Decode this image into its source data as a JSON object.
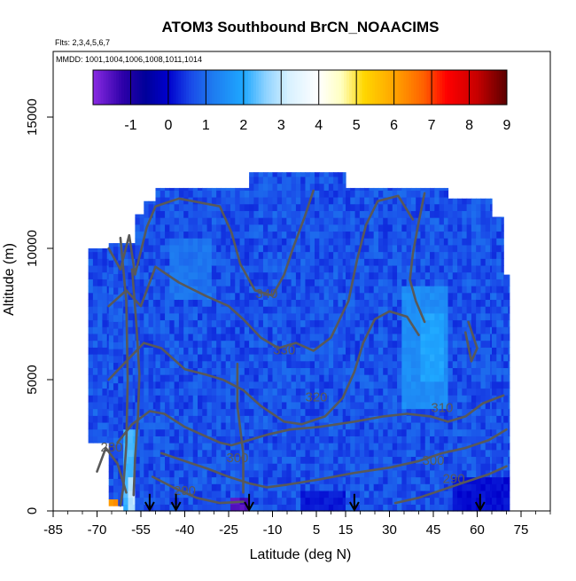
{
  "chart_data": {
    "type": "heatmap",
    "title": "ATOM3 Southbound BrCN_NOAACIMS",
    "subtitle_lines": [
      "Flts: 2,3,4,5,6,7",
      "MMDD: 1001,1004,1006,1008,1011,1014"
    ],
    "xlabel": "Latitude (deg N)",
    "ylabel": "Altitude (m)",
    "xlim": [
      -85,
      85
    ],
    "ylim": [
      0,
      17500
    ],
    "x_ticks": [
      -85,
      -70,
      -55,
      -40,
      -25,
      -10,
      5,
      15,
      30,
      45,
      60,
      75
    ],
    "y_ticks": [
      0,
      5000,
      10000,
      15000
    ],
    "colorbar": {
      "range": [
        -2,
        9
      ],
      "ticks": [
        -1,
        0,
        1,
        2,
        3,
        4,
        5,
        6,
        7,
        8,
        9
      ],
      "colors": [
        {
          "v": -2,
          "c": "#8a2be2"
        },
        {
          "v": -1.2,
          "c": "#2d00a8"
        },
        {
          "v": -0.6,
          "c": "#00009a"
        },
        {
          "v": 0,
          "c": "#0000cd"
        },
        {
          "v": 0.6,
          "c": "#1a4ae8"
        },
        {
          "v": 1.2,
          "c": "#1e7cf0"
        },
        {
          "v": 2,
          "c": "#1ea8ff"
        },
        {
          "v": 2.6,
          "c": "#8fd3ff"
        },
        {
          "v": 3.2,
          "c": "#d8f1ff"
        },
        {
          "v": 4,
          "c": "#ffffff"
        },
        {
          "v": 4.6,
          "c": "#ffffc0"
        },
        {
          "v": 5.2,
          "c": "#ffd700"
        },
        {
          "v": 6,
          "c": "#ffa500"
        },
        {
          "v": 6.8,
          "c": "#ff6000"
        },
        {
          "v": 7.4,
          "c": "#ff0000"
        },
        {
          "v": 8.2,
          "c": "#c80000"
        },
        {
          "v": 9,
          "c": "#5a0000"
        }
      ]
    },
    "grid": false,
    "contour_color": "#595959",
    "contour_labels": [
      {
        "label": "340",
        "x": -12,
        "y": 8250
      },
      {
        "label": "330",
        "x": -6,
        "y": 6100
      },
      {
        "label": "320",
        "x": 5,
        "y": 4300
      },
      {
        "label": "310",
        "x": 48,
        "y": 3900
      },
      {
        "label": "300",
        "x": 45,
        "y": 1900
      },
      {
        "label": "290",
        "x": 52,
        "y": 1200
      },
      {
        "label": "300",
        "x": -22,
        "y": 2000
      },
      {
        "label": "290",
        "x": -40,
        "y": 750
      },
      {
        "label": "280",
        "x": -65,
        "y": 2400
      }
    ],
    "contours": [
      [
        [
          -66,
          10000
        ],
        [
          -62,
          9200
        ],
        [
          -59,
          10500
        ],
        [
          -57,
          9000
        ],
        [
          -53,
          10800
        ],
        [
          -50,
          11600
        ],
        [
          -42,
          11900
        ],
        [
          -28,
          11600
        ],
        [
          -24,
          10600
        ],
        [
          -21,
          9400
        ],
        [
          -16,
          8400
        ],
        [
          -10,
          8200
        ],
        [
          -6,
          9000
        ],
        [
          -3,
          10000
        ],
        [
          1,
          11200
        ],
        [
          4,
          12200
        ]
      ],
      [
        [
          -66,
          7800
        ],
        [
          -60,
          8400
        ],
        [
          -55,
          7800
        ],
        [
          -50,
          9300
        ],
        [
          -42,
          8700
        ],
        [
          -33,
          8200
        ],
        [
          -25,
          7800
        ],
        [
          -20,
          7300
        ],
        [
          -14,
          6600
        ],
        [
          -8,
          6200
        ],
        [
          -2,
          6400
        ],
        [
          4,
          6100
        ],
        [
          10,
          6600
        ],
        [
          16,
          8000
        ],
        [
          19,
          9600
        ],
        [
          22,
          10900
        ],
        [
          26,
          11800
        ],
        [
          33,
          12000
        ],
        [
          38,
          11100
        ]
      ],
      [
        [
          -66,
          5000
        ],
        [
          -60,
          5700
        ],
        [
          -54,
          6400
        ],
        [
          -48,
          6200
        ],
        [
          -40,
          5400
        ],
        [
          -33,
          5200
        ],
        [
          -27,
          5000
        ],
        [
          -20,
          4600
        ],
        [
          -14,
          4000
        ],
        [
          -6,
          3400
        ],
        [
          0,
          3300
        ],
        [
          8,
          3600
        ],
        [
          14,
          4300
        ],
        [
          18,
          5300
        ],
        [
          21,
          6400
        ],
        [
          25,
          7300
        ],
        [
          30,
          7600
        ],
        [
          36,
          7400
        ],
        [
          40,
          6700
        ]
      ],
      [
        [
          -63,
          2600
        ],
        [
          -58,
          3300
        ],
        [
          -52,
          3800
        ],
        [
          -47,
          3700
        ],
        [
          -40,
          3200
        ],
        [
          -34,
          2900
        ],
        [
          -28,
          2600
        ],
        [
          -24,
          2500
        ],
        [
          -18,
          2700
        ],
        [
          -12,
          2900
        ],
        [
          -4,
          3100
        ],
        [
          6,
          3200
        ],
        [
          18,
          3400
        ],
        [
          28,
          3600
        ],
        [
          36,
          3700
        ],
        [
          44,
          3600
        ],
        [
          50,
          3400
        ],
        [
          56,
          3600
        ],
        [
          62,
          4100
        ],
        [
          69,
          4400
        ]
      ],
      [
        [
          -48,
          2200
        ],
        [
          -40,
          1900
        ],
        [
          -32,
          1600
        ],
        [
          -25,
          1300
        ],
        [
          -18,
          1050
        ],
        [
          -12,
          900
        ],
        [
          -5,
          1000
        ],
        [
          6,
          1200
        ],
        [
          18,
          1450
        ],
        [
          30,
          1650
        ],
        [
          40,
          1900
        ],
        [
          48,
          2200
        ],
        [
          56,
          2400
        ],
        [
          64,
          2700
        ],
        [
          70,
          3100
        ]
      ],
      [
        [
          -51,
          1300
        ],
        [
          -44,
          900
        ],
        [
          -36,
          500
        ],
        [
          -28,
          300
        ],
        [
          -20,
          350
        ]
      ],
      [
        [
          32,
          300
        ],
        [
          40,
          500
        ],
        [
          48,
          800
        ],
        [
          56,
          1100
        ],
        [
          64,
          1400
        ],
        [
          70,
          1700
        ]
      ],
      [
        [
          -70,
          1500
        ],
        [
          -67,
          2400
        ],
        [
          -63,
          1800
        ],
        [
          -60,
          700
        ]
      ],
      [
        [
          -62,
          10400
        ],
        [
          -60,
          8000
        ],
        [
          -59.5,
          5000
        ],
        [
          -60,
          2500
        ],
        [
          -61,
          900
        ],
        [
          -62,
          200
        ]
      ],
      [
        [
          -58,
          9200
        ],
        [
          -56.5,
          7000
        ],
        [
          -55.5,
          5200
        ],
        [
          -56,
          3600
        ],
        [
          -57,
          2000
        ],
        [
          -57.5,
          600
        ]
      ],
      [
        [
          42,
          12100
        ],
        [
          40,
          11000
        ],
        [
          38,
          9800
        ],
        [
          37,
          8800
        ],
        [
          39,
          8000
        ],
        [
          42,
          7200
        ]
      ],
      [
        [
          56,
          6800
        ],
        [
          58,
          5700
        ],
        [
          60,
          6200
        ],
        [
          57,
          7200
        ]
      ],
      [
        [
          -20,
          700
        ],
        [
          -20,
          2200
        ],
        [
          -22,
          4000
        ],
        [
          -22,
          5600
        ]
      ]
    ],
    "arrows_x": [
      -52,
      -43,
      -18,
      18,
      61
    ],
    "data_extent": {
      "columns": [
        {
          "x0": -73,
          "x1": -66,
          "ytop": 10000,
          "ybot": 2600
        },
        {
          "x0": -66,
          "x1": -61,
          "ytop": 10200,
          "ybot": 200
        },
        {
          "x0": -61,
          "x1": -57,
          "ytop": 10200,
          "ybot": 0
        },
        {
          "x0": -57,
          "x1": -54,
          "ytop": 11300,
          "ybot": 0
        },
        {
          "x0": -54,
          "x1": -50,
          "ytop": 11800,
          "ybot": 0
        },
        {
          "x0": -50,
          "x1": -18,
          "ytop": 12300,
          "ybot": 0
        },
        {
          "x0": -18,
          "x1": 15,
          "ytop": 12900,
          "ybot": 0
        },
        {
          "x0": 15,
          "x1": 50,
          "ytop": 12300,
          "ybot": 0
        },
        {
          "x0": 50,
          "x1": 65,
          "ytop": 11900,
          "ybot": 0
        },
        {
          "x0": 65,
          "x1": 69,
          "ytop": 11200,
          "ybot": 0
        },
        {
          "x0": 69,
          "x1": 71,
          "ytop": 9000,
          "ybot": 0
        }
      ],
      "base_value": 0.7,
      "features": [
        {
          "x0": -61,
          "x1": -57,
          "y0": 0,
          "y1": 3200,
          "v": 2.2
        },
        {
          "x0": -59,
          "x1": -57,
          "y0": 0,
          "y1": 1200,
          "v": 3.0
        },
        {
          "x0": -66,
          "x1": -63,
          "y0": 0,
          "y1": 400,
          "v": 6.2
        },
        {
          "x0": -65,
          "x1": -64,
          "y0": 0,
          "y1": 400,
          "v": 7.5
        },
        {
          "x0": -25,
          "x1": -18,
          "y0": 0,
          "y1": 500,
          "v": -1.5
        },
        {
          "x0": 35,
          "x1": 50,
          "y0": 3800,
          "y1": 8500,
          "v": 1.5
        },
        {
          "x0": 40,
          "x1": 48,
          "y0": 5000,
          "y1": 7500,
          "v": 1.9
        },
        {
          "x0": -45,
          "x1": -30,
          "y0": 8000,
          "y1": 10500,
          "v": 1.1
        },
        {
          "x0": 0,
          "x1": 15,
          "y0": 0,
          "y1": 800,
          "v": 0.2
        },
        {
          "x0": 52,
          "x1": 71,
          "y0": 0,
          "y1": 1200,
          "v": 0.1
        }
      ]
    }
  }
}
